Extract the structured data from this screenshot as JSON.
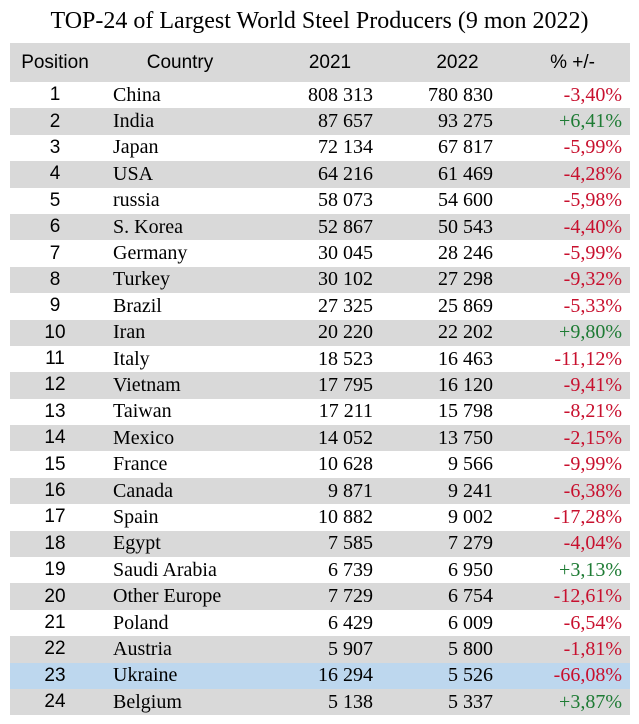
{
  "title": "TOP-24 of Largest World Steel Producers (9 mon 2022)",
  "colors": {
    "negative_change": "#c8102e",
    "positive_change": "#1e7b34",
    "header_background": "#d9d9d9",
    "alt_row_background": "#d9d9d9",
    "highlight_row_background": "#bdd7ee",
    "text": "#000000"
  },
  "chart_data": {
    "type": "table",
    "title": "TOP-24 of Largest World Steel Producers (9 mon 2022)",
    "columns": [
      "Position",
      "Country",
      "2021",
      "2022",
      "% +/-"
    ],
    "highlighted_country": "Ukraine",
    "rows": [
      {
        "position": "1",
        "country": "China",
        "y2021": "808 313",
        "y2022": "780 830",
        "change": "-3,40%",
        "highlight": false
      },
      {
        "position": "2",
        "country": "India",
        "y2021": "87 657",
        "y2022": "93 275",
        "change": "+6,41%",
        "highlight": false
      },
      {
        "position": "3",
        "country": "Japan",
        "y2021": "72 134",
        "y2022": "67 817",
        "change": "-5,99%",
        "highlight": false
      },
      {
        "position": "4",
        "country": "USA",
        "y2021": "64 216",
        "y2022": "61 469",
        "change": "-4,28%",
        "highlight": false
      },
      {
        "position": "5",
        "country": "russia",
        "y2021": "58 073",
        "y2022": "54 600",
        "change": "-5,98%",
        "highlight": false
      },
      {
        "position": "6",
        "country": "S. Korea",
        "y2021": "52 867",
        "y2022": "50 543",
        "change": "-4,40%",
        "highlight": false
      },
      {
        "position": "7",
        "country": "Germany",
        "y2021": "30 045",
        "y2022": "28 246",
        "change": "-5,99%",
        "highlight": false
      },
      {
        "position": "8",
        "country": "Turkey",
        "y2021": "30 102",
        "y2022": "27 298",
        "change": "-9,32%",
        "highlight": false
      },
      {
        "position": "9",
        "country": "Brazil",
        "y2021": "27 325",
        "y2022": "25 869",
        "change": "-5,33%",
        "highlight": false
      },
      {
        "position": "10",
        "country": "Iran",
        "y2021": "20 220",
        "y2022": "22 202",
        "change": "+9,80%",
        "highlight": false
      },
      {
        "position": "11",
        "country": "Italy",
        "y2021": "18 523",
        "y2022": "16 463",
        "change": "-11,12%",
        "highlight": false
      },
      {
        "position": "12",
        "country": "Vietnam",
        "y2021": "17 795",
        "y2022": "16 120",
        "change": "-9,41%",
        "highlight": false
      },
      {
        "position": "13",
        "country": "Taiwan",
        "y2021": "17 211",
        "y2022": "15 798",
        "change": "-8,21%",
        "highlight": false
      },
      {
        "position": "14",
        "country": "Mexico",
        "y2021": "14 052",
        "y2022": "13 750",
        "change": "-2,15%",
        "highlight": false
      },
      {
        "position": "15",
        "country": "France",
        "y2021": "10 628",
        "y2022": "9 566",
        "change": "-9,99%",
        "highlight": false
      },
      {
        "position": "16",
        "country": "Canada",
        "y2021": "9 871",
        "y2022": "9 241",
        "change": "-6,38%",
        "highlight": false
      },
      {
        "position": "17",
        "country": "Spain",
        "y2021": "10 882",
        "y2022": "9 002",
        "change": "-17,28%",
        "highlight": false
      },
      {
        "position": "18",
        "country": "Egypt",
        "y2021": "7 585",
        "y2022": "7 279",
        "change": "-4,04%",
        "highlight": false
      },
      {
        "position": "19",
        "country": "Saudi Arabia",
        "y2021": "6 739",
        "y2022": "6 950",
        "change": "+3,13%",
        "highlight": false
      },
      {
        "position": "20",
        "country": "Other Europe",
        "y2021": "7 729",
        "y2022": "6 754",
        "change": "-12,61%",
        "highlight": false
      },
      {
        "position": "21",
        "country": "Poland",
        "y2021": "6 429",
        "y2022": "6 009",
        "change": "-6,54%",
        "highlight": false
      },
      {
        "position": "22",
        "country": "Austria",
        "y2021": "5 907",
        "y2022": "5 800",
        "change": "-1,81%",
        "highlight": false
      },
      {
        "position": "23",
        "country": "Ukraine",
        "y2021": "16 294",
        "y2022": "5 526",
        "change": "-66,08%",
        "highlight": true
      },
      {
        "position": "24",
        "country": "Belgium",
        "y2021": "5 138",
        "y2022": "5 337",
        "change": "+3,87%",
        "highlight": false
      }
    ]
  }
}
